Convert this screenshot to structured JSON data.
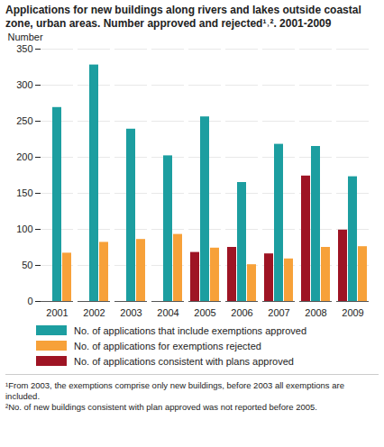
{
  "chart_data": {
    "type": "bar",
    "title": "Applications for new buildings along rivers and lakes outside coastal zone, urban areas. Number approved and rejected¹˒². 2001-2009",
    "y_label": "Number",
    "categories": [
      "2001",
      "2002",
      "2003",
      "2004",
      "2005",
      "2006",
      "2007",
      "2008",
      "2009"
    ],
    "series": [
      {
        "name": "No. of applications that include exemptions approved",
        "color": "#1c9ea0",
        "values": [
          269,
          328,
          239,
          202,
          256,
          165,
          218,
          215,
          173
        ]
      },
      {
        "name": "No. of applications for exemptions rejected",
        "color": "#f7a139",
        "values": [
          67,
          82,
          86,
          93,
          74,
          51,
          59,
          75,
          76
        ]
      },
      {
        "name": "No. of applications consistent with plans approved",
        "color": "#9e1424",
        "values": [
          null,
          null,
          null,
          null,
          68,
          75,
          66,
          174,
          99
        ]
      }
    ],
    "ylim": [
      0,
      350
    ],
    "yticks": [
      0,
      50,
      100,
      150,
      200,
      250,
      300,
      350
    ],
    "grid": true,
    "notes": [
      "¹From 2003, the exemptions comprise only new buildings, before 2003 all exemptions are included.",
      "²No. of new buildings consistent with plan approved was not reported before 2005."
    ]
  }
}
